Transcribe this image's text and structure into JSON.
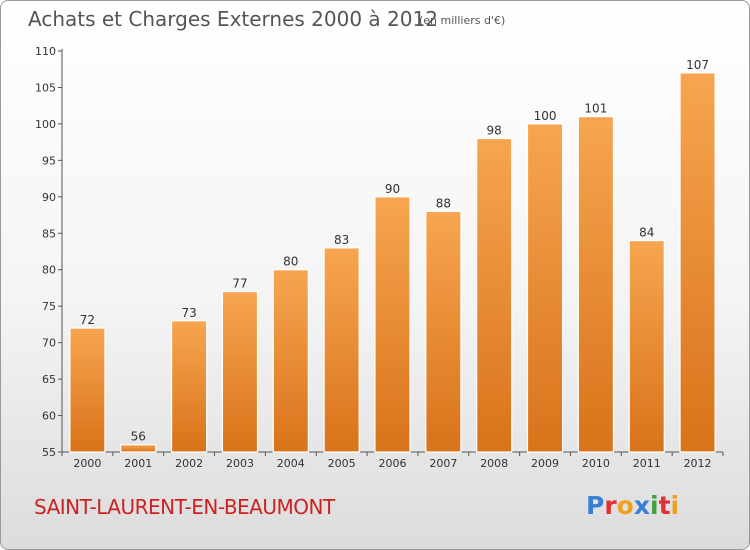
{
  "header": {
    "title": "Achats et Charges Externes 2000 à 2012",
    "unit": "(en milliers d'€)"
  },
  "footer": {
    "commune": "SAINT-LAURENT-EN-BEAUMONT",
    "brand": "Proxiti"
  },
  "colors": {
    "bar_top": "#f7a550",
    "bar_bottom": "#d8731a",
    "commune": "#cc2222",
    "brand_letters": [
      "#3a7fd5",
      "#e03030",
      "#f0a020",
      "#3a7fd5",
      "#40a040",
      "#e03030",
      "#f0a020"
    ]
  },
  "chart_data": {
    "type": "bar",
    "title": "Achats et Charges Externes 2000 à 2012",
    "subtitle": "(en milliers d'€)",
    "categories": [
      "2000",
      "2001",
      "2002",
      "2003",
      "2004",
      "2005",
      "2006",
      "2007",
      "2008",
      "2009",
      "2010",
      "2011",
      "2012"
    ],
    "values": [
      72,
      56,
      73,
      77,
      80,
      83,
      90,
      88,
      98,
      100,
      101,
      84,
      107
    ],
    "ylim": [
      55,
      110
    ],
    "yticks": [
      55,
      60,
      65,
      70,
      75,
      80,
      85,
      90,
      95,
      100,
      105,
      110
    ],
    "grid": false,
    "data_labels": true
  }
}
